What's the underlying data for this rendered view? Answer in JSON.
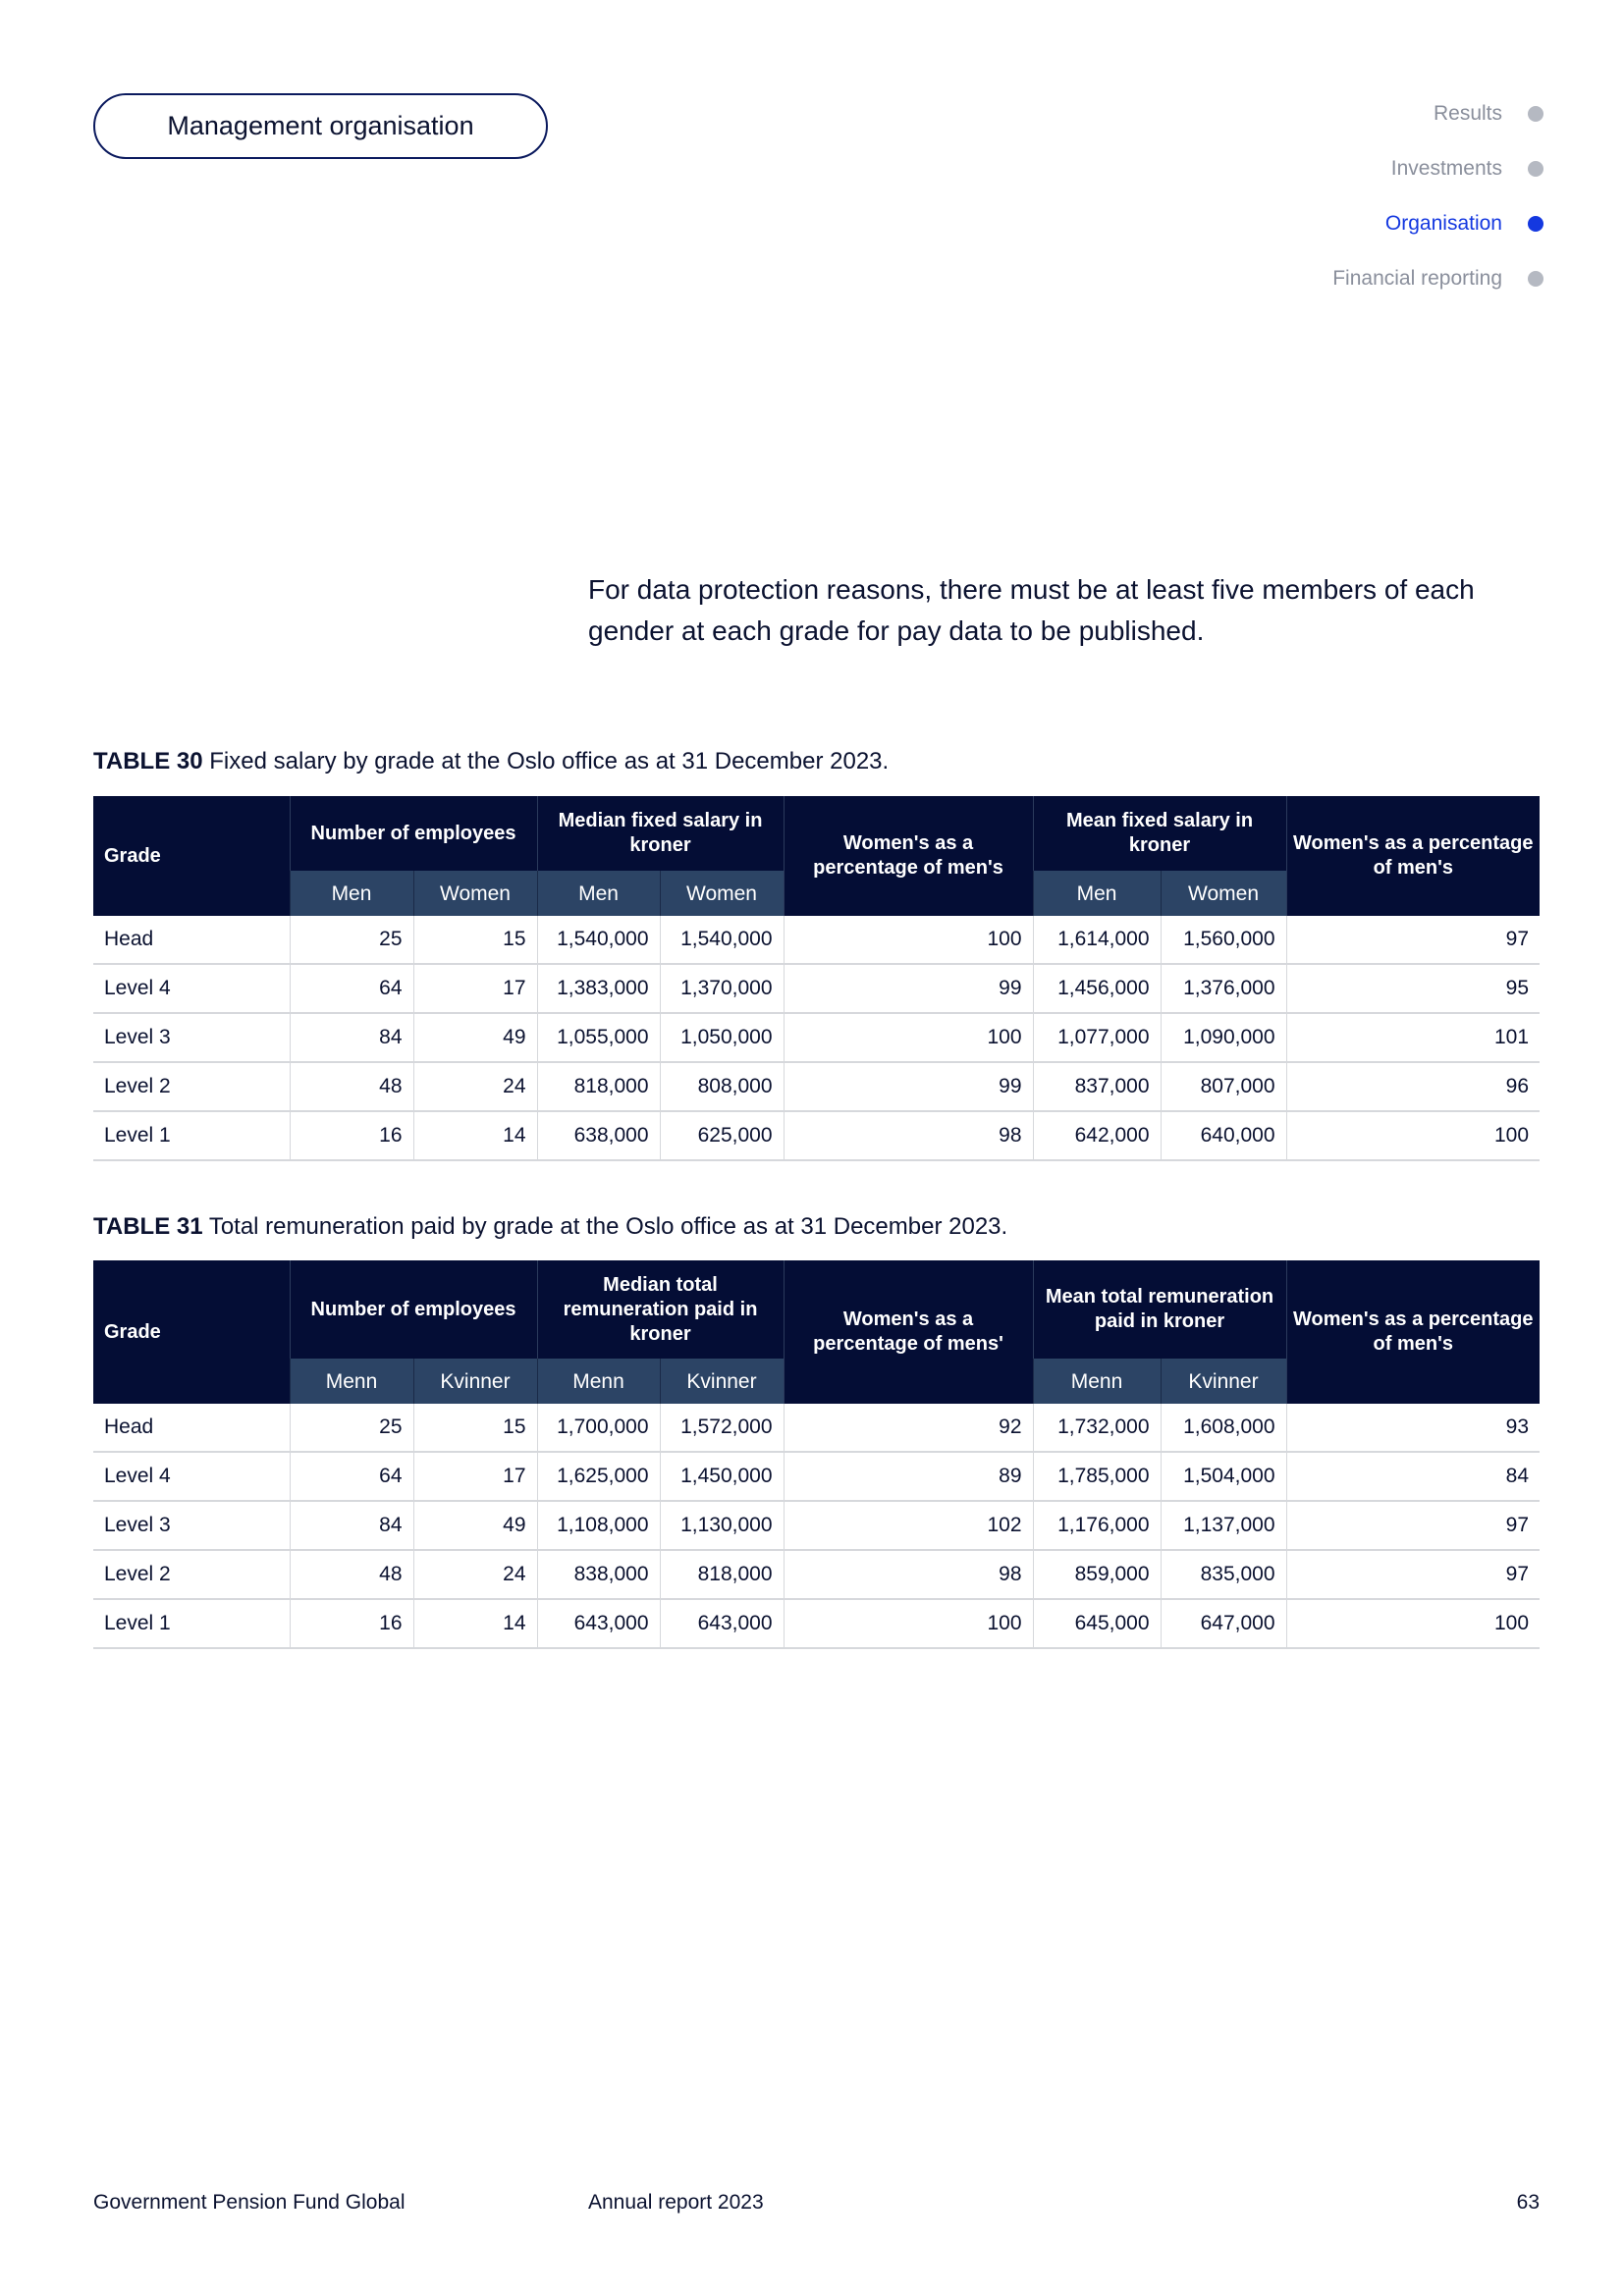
{
  "section_pill": "Management organisation",
  "nav": [
    {
      "label": "Results",
      "active": false
    },
    {
      "label": "Investments",
      "active": false
    },
    {
      "label": "Organisation",
      "active": true
    },
    {
      "label": "Financial reporting",
      "active": false
    }
  ],
  "intro": "For data protection reasons, there must be at least five members of each gender at each grade for pay data to be published.",
  "tables": [
    {
      "number": "TABLE 30",
      "caption": "Fixed salary by grade at the Oslo office as at 31 December 2023.",
      "headers": {
        "grade": "Grade",
        "employees": "Number of employees",
        "median": "Median fixed salary in kroner",
        "median_pct": "Women's as a percentage of men's",
        "mean": "Mean fixed salary in kroner",
        "mean_pct": "Women's as a percentage of men's",
        "sub_men": "Men",
        "sub_women": "Women"
      },
      "rows": [
        [
          "Head",
          "25",
          "15",
          "1,540,000",
          "1,540,000",
          "100",
          "1,614,000",
          "1,560,000",
          "97"
        ],
        [
          "Level 4",
          "64",
          "17",
          "1,383,000",
          "1,370,000",
          "99",
          "1,456,000",
          "1,376,000",
          "95"
        ],
        [
          "Level 3",
          "84",
          "49",
          "1,055,000",
          "1,050,000",
          "100",
          "1,077,000",
          "1,090,000",
          "101"
        ],
        [
          "Level 2",
          "48",
          "24",
          "818,000",
          "808,000",
          "99",
          "837,000",
          "807,000",
          "96"
        ],
        [
          "Level 1",
          "16",
          "14",
          "638,000",
          "625,000",
          "98",
          "642,000",
          "640,000",
          "100"
        ]
      ]
    },
    {
      "number": "TABLE 31",
      "caption": "Total remuneration paid by grade at the Oslo office as at 31 December 2023.",
      "headers": {
        "grade": "Grade",
        "employees": "Number of employees",
        "median": "Median total remuneration paid in kroner",
        "median_pct": "Women's as a percentage of mens'",
        "mean": "Mean total remuneration paid in kroner",
        "mean_pct": "Women's as a percentage of men's",
        "sub_men": "Menn",
        "sub_women": "Kvinner"
      },
      "rows": [
        [
          "Head",
          "25",
          "15",
          "1,700,000",
          "1,572,000",
          "92",
          "1,732,000",
          "1,608,000",
          "93"
        ],
        [
          "Level 4",
          "64",
          "17",
          "1,625,000",
          "1,450,000",
          "89",
          "1,785,000",
          "1,504,000",
          "84"
        ],
        [
          "Level 3",
          "84",
          "49",
          "1,108,000",
          "1,130,000",
          "102",
          "1,176,000",
          "1,137,000",
          "97"
        ],
        [
          "Level 2",
          "48",
          "24",
          "838,000",
          "818,000",
          "98",
          "859,000",
          "835,000",
          "97"
        ],
        [
          "Level 1",
          "16",
          "14",
          "643,000",
          "643,000",
          "100",
          "645,000",
          "647,000",
          "100"
        ]
      ]
    }
  ],
  "footer": {
    "left": "Government Pension Fund Global",
    "center": "Annual report 2023",
    "page": "63"
  }
}
